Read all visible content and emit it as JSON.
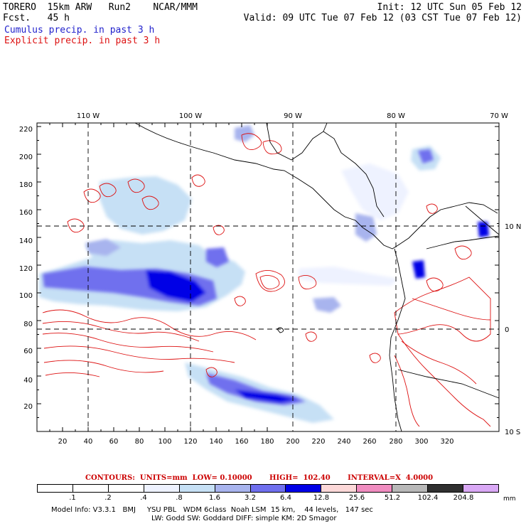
{
  "header": {
    "line1_left": "TORERO  15km ARW   Run2    NCAR/MMM",
    "line2_left": "Fcst.   45 h",
    "line1_right": "Init: 12 UTC Sun 05 Feb 12",
    "line2_right": "Valid: 09 UTC Tue 07 Feb 12 (03 CST Tue 07 Feb 12)"
  },
  "legend": {
    "cumulus": "Cumulus precip. in past 3 h",
    "explicit": "Explicit precip. in past 3 h",
    "cumulus_color": "#2222cc",
    "explicit_color": "#dd1111"
  },
  "map": {
    "lon_labels": [
      "110 W",
      "100 W",
      "90 W",
      "80 W",
      "70 W"
    ],
    "lat_labels": [
      "10 N",
      "0",
      "10 S"
    ],
    "x_ticks": [
      "20",
      "40",
      "60",
      "80",
      "100",
      "120",
      "140",
      "160",
      "180",
      "200",
      "220",
      "240",
      "260",
      "280",
      "300",
      "320"
    ],
    "y_ticks": [
      "20",
      "40",
      "60",
      "80",
      "100",
      "120",
      "140",
      "160",
      "180",
      "200",
      "220"
    ]
  },
  "contours": {
    "text": "CONTOURS:  UNITS=mm  LOW= 0.10000       HIGH=  102.40       INTERVAL=X  4.0000"
  },
  "colorbar": {
    "colors": [
      "#ffffff",
      "#ffffff",
      "#ffffff",
      "#eef2ff",
      "#c6e0f5",
      "#a8b4ee",
      "#6f6fee",
      "#0000e6",
      "#fcd8d8",
      "#f08cc0",
      "#b8b8b8",
      "#303030",
      "#d9a8f5"
    ],
    "labels": [
      ".1",
      ".2",
      ".4",
      ".8",
      "1.6",
      "3.2",
      "6.4",
      "12.8",
      "25.6",
      "51.2",
      "102.4",
      "204.8"
    ],
    "unit": "mm"
  },
  "model_info": {
    "line1": "Model Info: V3.3.1   BMJ     YSU PBL   WDM 6class  Noah LSM  15 km,    44 levels,   147 sec",
    "line2": "LW: Godd SW: Goddard DIFF: simple KM: 2D Smagor"
  }
}
